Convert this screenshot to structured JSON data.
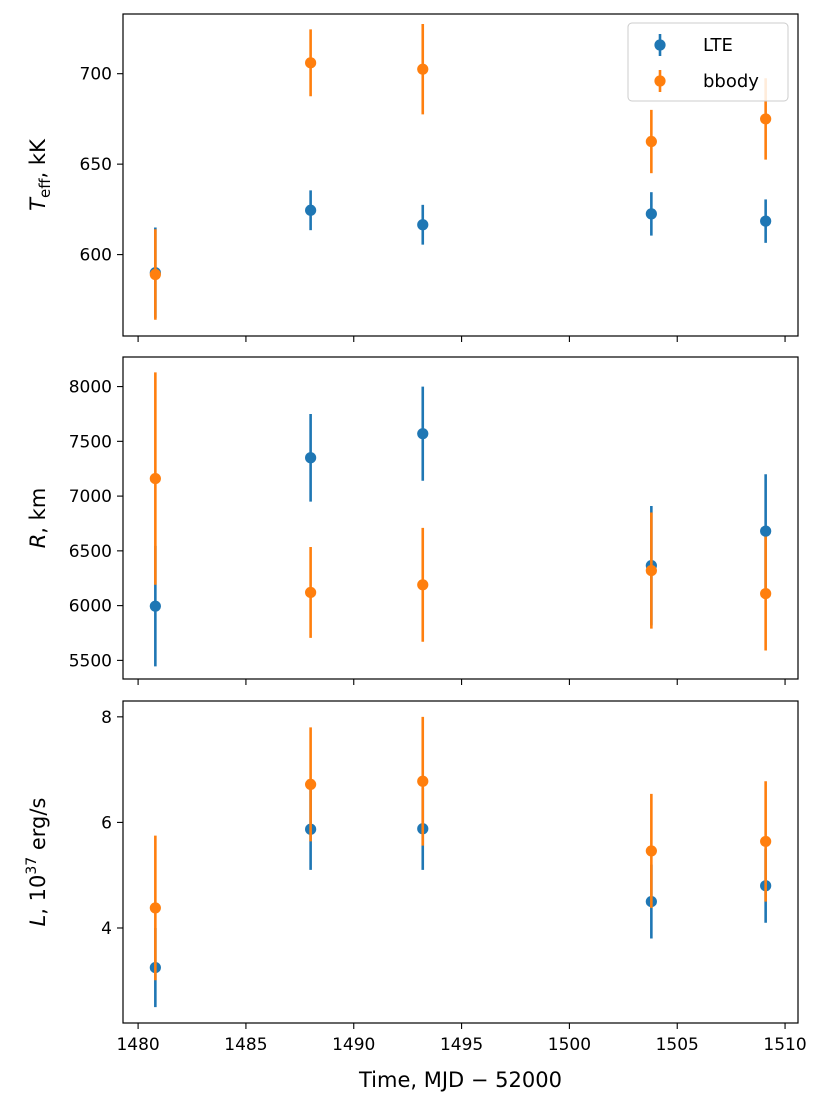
{
  "chart_data": [
    {
      "type": "scatter",
      "panel": "temperature",
      "ylabel": {
        "symbol": "T",
        "sub": "eff",
        "unit": ", kK"
      },
      "xlim": [
        1479.3,
        1510.6
      ],
      "ylim": [
        555,
        733
      ],
      "yticks": [
        600,
        650,
        700
      ],
      "x": [
        1480.8,
        1488.0,
        1493.2,
        1503.8,
        1509.1
      ],
      "series": [
        {
          "name": "LTE",
          "color": "#1f77b4",
          "values": [
            590,
            624.5,
            616.5,
            622.5,
            618.5
          ],
          "errors": [
            25,
            11,
            11,
            12,
            12
          ]
        },
        {
          "name": "bbody",
          "color": "#ff7f0e",
          "values": [
            589,
            706,
            702.5,
            662.5,
            675
          ],
          "errors": [
            25,
            18.5,
            25,
            17.5,
            22.5
          ]
        }
      ],
      "legend": {
        "position": "top-right",
        "entries": [
          "LTE",
          "bbody"
        ]
      }
    },
    {
      "type": "scatter",
      "panel": "radius",
      "ylabel": {
        "symbol": "R",
        "unit": ", km"
      },
      "xlim": [
        1479.3,
        1510.6
      ],
      "ylim": [
        5330,
        8270
      ],
      "yticks": [
        5500,
        6000,
        6500,
        7000,
        7500,
        8000
      ],
      "x": [
        1480.8,
        1488.0,
        1493.2,
        1503.8,
        1509.1
      ],
      "series": [
        {
          "name": "LTE",
          "color": "#1f77b4",
          "values": [
            5995,
            7350,
            7570,
            6365,
            6680
          ],
          "errors": [
            550,
            400,
            430,
            545,
            520
          ]
        },
        {
          "name": "bbody",
          "color": "#ff7f0e",
          "values": [
            7160,
            6120,
            6190,
            6320,
            6110
          ],
          "errors": [
            970,
            415,
            520,
            530,
            520
          ]
        }
      ]
    },
    {
      "type": "scatter",
      "panel": "luminosity",
      "ylabel": {
        "symbol": "L",
        "unit": ", 10",
        "exp": "37",
        "tail": " erg/s"
      },
      "xlabel": "Time, MJD − 52000",
      "xlim": [
        1479.3,
        1510.6
      ],
      "ylim": [
        2.2,
        8.3
      ],
      "yticks": [
        4,
        6,
        8
      ],
      "xticks": [
        1480,
        1485,
        1490,
        1495,
        1500,
        1505,
        1510
      ],
      "x": [
        1480.8,
        1488.0,
        1493.2,
        1503.8,
        1509.1
      ],
      "series": [
        {
          "name": "LTE",
          "color": "#1f77b4",
          "values": [
            3.25,
            5.87,
            5.88,
            4.5,
            4.8
          ],
          "errors": [
            0.75,
            0.77,
            0.78,
            0.7,
            0.7
          ]
        },
        {
          "name": "bbody",
          "color": "#ff7f0e",
          "values": [
            4.38,
            6.72,
            6.78,
            5.46,
            5.64
          ],
          "errors": [
            1.37,
            1.08,
            1.22,
            1.08,
            1.14
          ]
        }
      ]
    }
  ]
}
